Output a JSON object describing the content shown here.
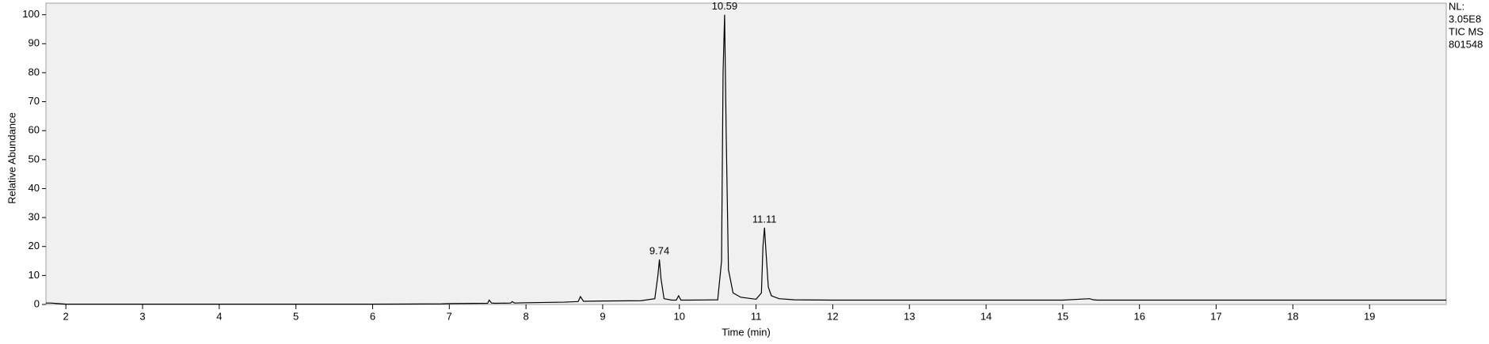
{
  "chart_data": {
    "type": "line",
    "xlabel": "Time (min)",
    "ylabel": "Relative Abundance",
    "info": [
      "NL:",
      "3.05E8",
      "TIC  MS",
      "801548"
    ],
    "x": [
      1.74,
      1.8,
      1.9,
      2.0,
      3,
      4,
      5,
      6,
      6.9,
      7.0,
      7.5,
      7.52,
      7.55,
      7.6,
      7.8,
      7.82,
      7.85,
      8,
      8.5,
      8.68,
      8.71,
      8.75,
      9.0,
      9.5,
      9.68,
      9.72,
      9.74,
      9.76,
      9.8,
      9.9,
      9.96,
      9.99,
      10.02,
      10.1,
      10.5,
      10.55,
      10.57,
      10.59,
      10.61,
      10.64,
      10.7,
      10.8,
      11.0,
      11.07,
      11.09,
      11.11,
      11.13,
      11.16,
      11.2,
      11.3,
      11.5,
      12,
      13,
      14,
      15,
      15.35,
      15.4,
      15.45,
      16,
      17,
      18,
      19,
      20
    ],
    "series": [
      {
        "color": "#000000",
        "values": [
          0.5,
          0.5,
          0.3,
          0.1,
          0.1,
          0.1,
          0.1,
          0.1,
          0.2,
          0.3,
          0.4,
          1.5,
          0.5,
          0.4,
          0.5,
          1,
          0.5,
          0.6,
          0.8,
          1,
          2.7,
          1.1,
          1.2,
          1.3,
          2,
          10,
          15.5,
          9,
          2,
          1.5,
          1.5,
          3,
          1.5,
          1.5,
          1.6,
          15,
          80,
          100,
          60,
          12,
          4,
          2.5,
          1.8,
          4,
          20,
          26.5,
          18,
          6,
          3,
          2,
          1.6,
          1.5,
          1.5,
          1.5,
          1.5,
          2,
          1.6,
          1.5,
          1.5,
          1.5,
          1.5,
          1.5,
          1.5
        ]
      }
    ],
    "annotations": [
      {
        "text": "9.74",
        "x": 9.74,
        "y": 15.5
      },
      {
        "text": "10.59",
        "x": 10.59,
        "y": 100
      },
      {
        "text": "11.11",
        "x": 11.11,
        "y": 26.5
      }
    ],
    "xlim": [
      1.74,
      20.0
    ],
    "ylim": [
      0,
      104
    ],
    "xticks": [
      2,
      3,
      4,
      5,
      6,
      7,
      8,
      9,
      10,
      11,
      12,
      13,
      14,
      15,
      16,
      17,
      18,
      19
    ],
    "yticks": [
      0,
      10,
      20,
      30,
      40,
      50,
      60,
      70,
      80,
      90,
      100
    ]
  }
}
